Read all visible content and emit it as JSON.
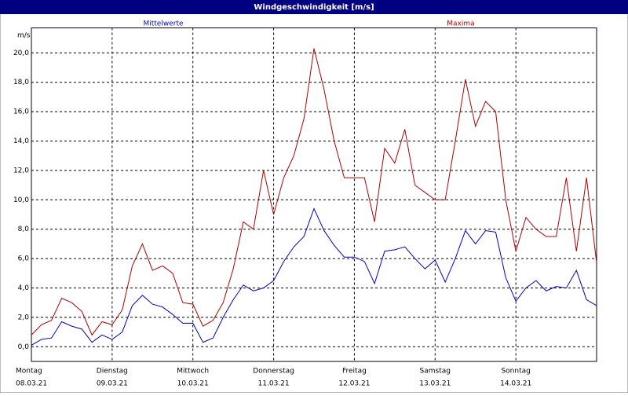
{
  "chart_data": {
    "type": "line",
    "title": "Windgeschwindigkeit [m/s]",
    "y_label": "m/s",
    "x": [
      0,
      0.125,
      0.25,
      0.375,
      0.5,
      0.625,
      0.75,
      0.875,
      1,
      1.125,
      1.25,
      1.375,
      1.5,
      1.625,
      1.75,
      1.875,
      2,
      2.125,
      2.25,
      2.375,
      2.5,
      2.625,
      2.75,
      2.875,
      3,
      3.125,
      3.25,
      3.375,
      3.5,
      3.625,
      3.75,
      3.875,
      4,
      4.125,
      4.25,
      4.375,
      4.5,
      4.625,
      4.75,
      4.875,
      5,
      5.125,
      5.25,
      5.375,
      5.5,
      5.625,
      5.75,
      5.875,
      6,
      6.125,
      6.25,
      6.375,
      6.5,
      6.625,
      6.75,
      6.875,
      7
    ],
    "xlim": [
      0,
      7
    ],
    "xticks": [
      {
        "value": 0,
        "label": "Montag"
      },
      {
        "value": 1,
        "label": "Dienstag"
      },
      {
        "value": 2,
        "label": "Mittwoch"
      },
      {
        "value": 3,
        "label": "Donnerstag"
      },
      {
        "value": 4,
        "label": "Freitag"
      },
      {
        "value": 5,
        "label": "Samstag"
      },
      {
        "value": 6,
        "label": "Sonntag"
      }
    ],
    "xtick_dates": [
      "08.03.21",
      "09.03.21",
      "10.03.21",
      "11.03.21",
      "12.03.21",
      "13.03.21",
      "14.03.21"
    ],
    "ylim": [
      -1,
      21.7
    ],
    "yticks": [
      {
        "value": 0,
        "label": "0,0"
      },
      {
        "value": 2,
        "label": "2,0"
      },
      {
        "value": 4,
        "label": "4,0"
      },
      {
        "value": 6,
        "label": "6,0"
      },
      {
        "value": 8,
        "label": "8,0"
      },
      {
        "value": 10,
        "label": "10,0"
      },
      {
        "value": 12,
        "label": "12,0"
      },
      {
        "value": 14,
        "label": "14,0"
      },
      {
        "value": 16,
        "label": "16,0"
      },
      {
        "value": 18,
        "label": "18,0"
      },
      {
        "value": 20,
        "label": "20,0"
      }
    ],
    "grid": true,
    "series": [
      {
        "name": "Mittelwerte",
        "color": "#0000c0",
        "values": [
          0.1,
          0.5,
          0.6,
          1.7,
          1.4,
          1.2,
          0.3,
          0.8,
          0.5,
          1.0,
          2.8,
          3.5,
          2.9,
          2.7,
          2.2,
          1.6,
          1.6,
          0.3,
          0.6,
          2.0,
          3.2,
          4.2,
          3.8,
          4.0,
          4.5,
          5.8,
          6.8,
          7.5,
          9.4,
          7.9,
          6.9,
          6.1,
          6.1,
          5.8,
          4.3,
          6.5,
          6.6,
          6.8,
          6.0,
          5.3,
          5.9,
          4.4,
          6.0,
          7.9,
          7.0,
          7.9,
          7.8,
          4.7,
          3.1,
          4.0,
          4.5,
          3.8,
          4.1,
          4.0,
          5.2,
          3.2,
          2.8
        ]
      },
      {
        "name": "Maxima",
        "color": "#b00000",
        "values": [
          0.8,
          1.5,
          1.8,
          3.3,
          3.0,
          2.4,
          0.8,
          1.7,
          1.5,
          2.5,
          5.5,
          7.0,
          5.2,
          5.5,
          5.0,
          3.0,
          2.9,
          1.4,
          1.8,
          3.0,
          5.3,
          8.5,
          8.0,
          12.0,
          9.0,
          11.5,
          13.0,
          15.5,
          20.3,
          17.5,
          14.0,
          11.5,
          11.5,
          11.5,
          8.5,
          13.5,
          12.5,
          14.8,
          11.0,
          10.5,
          10.0,
          10.0,
          14.0,
          18.2,
          15.0,
          16.7,
          16.0,
          10.0,
          6.5,
          8.8,
          8.0,
          7.5,
          7.5,
          11.5,
          6.5,
          11.5,
          5.7
        ]
      }
    ]
  }
}
